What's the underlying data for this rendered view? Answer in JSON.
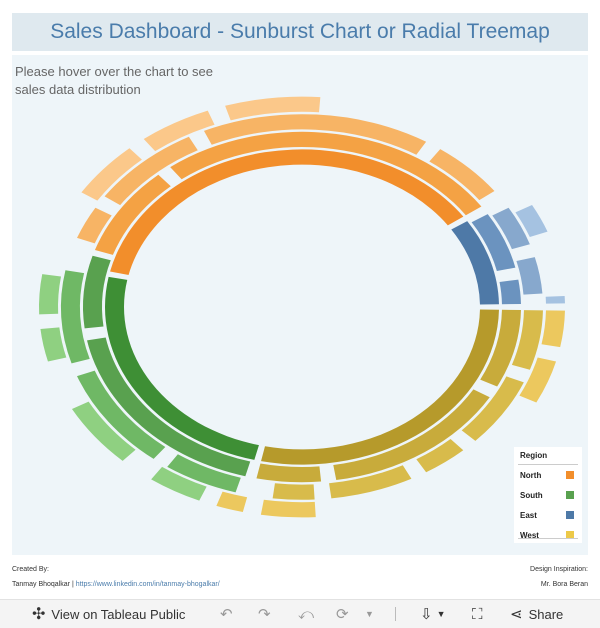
{
  "title": "Sales Dashboard - Sunburst Chart or Radial Treemap",
  "hint": "Please hover over the chart to see sales data distribution",
  "legend": {
    "title": "Region",
    "items": [
      {
        "label": "North",
        "color": "#f28e2b"
      },
      {
        "label": "South",
        "color": "#59a14f"
      },
      {
        "label": "East",
        "color": "#4e79a7"
      },
      {
        "label": "West",
        "color": "#edc948"
      }
    ]
  },
  "credits": {
    "created_by_label": "Created By:",
    "author": "Tanmay Bhoqalkar",
    "separator": "|",
    "link": "https://www.linkedin.com/in/tanmay-bhogalkar/",
    "inspiration_label": "Design Inspiration:",
    "inspiration_name": "Mr. Bora Beran"
  },
  "toolbar": {
    "view_label": "View on Tableau Public",
    "share_label": "Share",
    "icons": [
      "tableau-logo-icon",
      "undo-icon",
      "redo-icon",
      "revert-icon",
      "refresh-icon",
      "dropdown-icon",
      "download-icon",
      "fullscreen-icon",
      "share-icon"
    ]
  }
}
